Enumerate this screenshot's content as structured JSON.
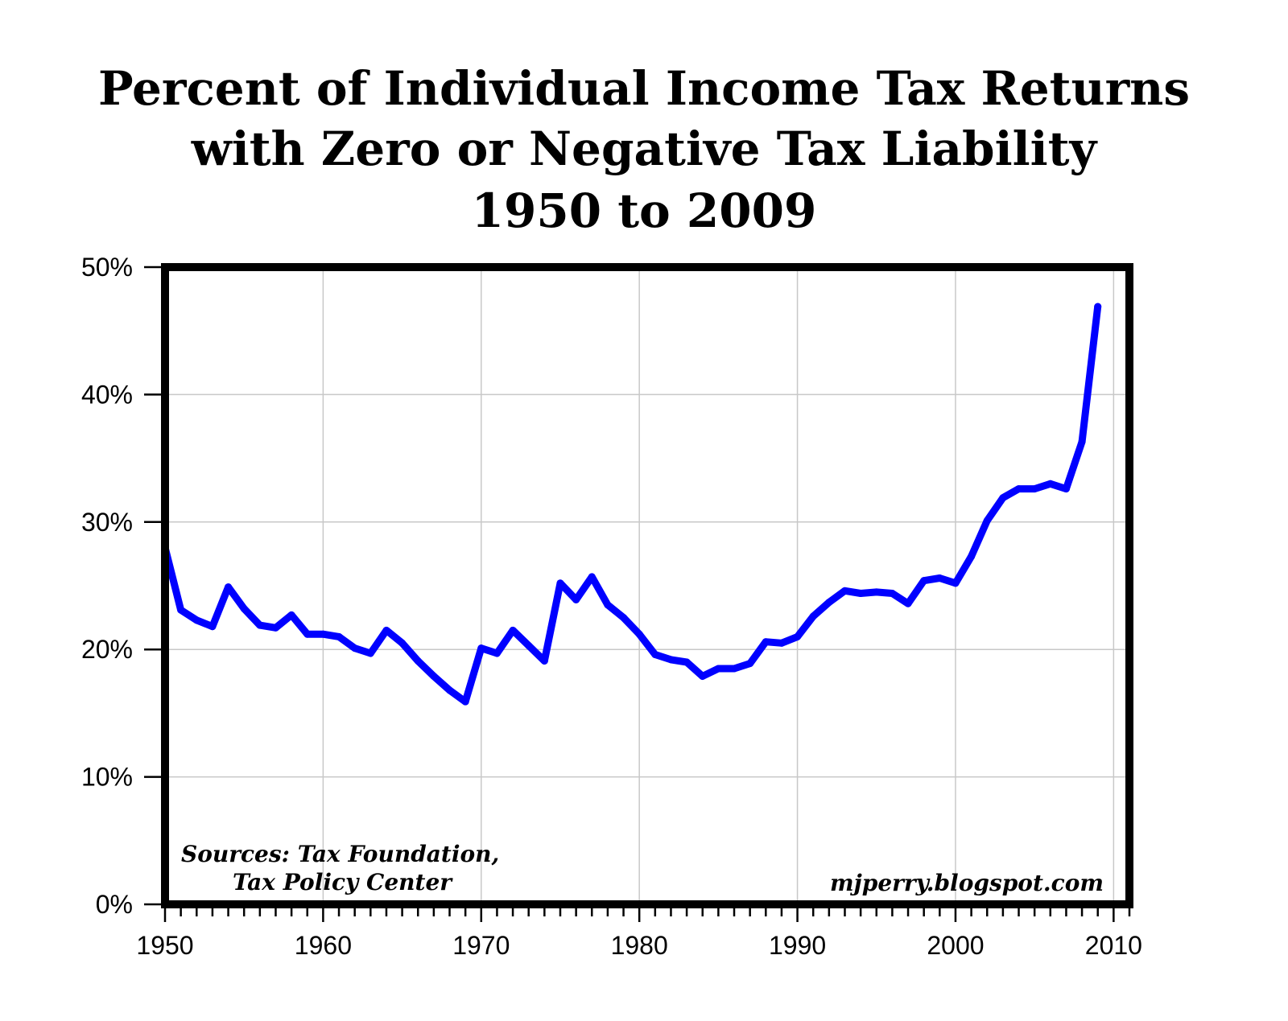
{
  "chart_data": {
    "type": "line",
    "title": "Percent of Individual Income Tax Returns",
    "title_line2": "with Zero or Negative Tax Liability",
    "title_line3": "1950 to 2009",
    "xlabel": "",
    "ylabel": "",
    "xlim": [
      1950,
      2011
    ],
    "ylim": [
      0,
      50
    ],
    "x_ticks": [
      1950,
      1960,
      1970,
      1980,
      1990,
      2000,
      2010
    ],
    "x_tick_labels": [
      "1950",
      "1960",
      "1970",
      "1980",
      "1990",
      "2000",
      "2010"
    ],
    "y_ticks": [
      0,
      10,
      20,
      30,
      40,
      50
    ],
    "y_tick_labels": [
      "0%",
      "10%",
      "20%",
      "30%",
      "40%",
      "50%"
    ],
    "grid": true,
    "legend": "none",
    "series": [
      {
        "color": "#0000ff",
        "x": [
          1950,
          1951,
          1952,
          1953,
          1954,
          1955,
          1956,
          1957,
          1958,
          1959,
          1960,
          1961,
          1962,
          1963,
          1964,
          1965,
          1966,
          1967,
          1968,
          1969,
          1970,
          1971,
          1972,
          1973,
          1974,
          1975,
          1976,
          1977,
          1978,
          1979,
          1980,
          1981,
          1982,
          1983,
          1984,
          1985,
          1986,
          1987,
          1988,
          1989,
          1990,
          1991,
          1992,
          1993,
          1994,
          1995,
          1996,
          1997,
          1998,
          1999,
          2000,
          2001,
          2002,
          2003,
          2004,
          2005,
          2006,
          2007,
          2008,
          2009
        ],
        "values": [
          28.0,
          23.1,
          22.3,
          21.8,
          24.9,
          23.2,
          21.9,
          21.7,
          22.7,
          21.2,
          21.2,
          21.0,
          20.1,
          19.7,
          21.5,
          20.5,
          19.1,
          17.9,
          16.8,
          15.9,
          20.1,
          19.7,
          21.5,
          20.3,
          19.1,
          25.2,
          23.9,
          25.7,
          23.5,
          22.5,
          21.2,
          19.6,
          19.2,
          19.0,
          17.9,
          18.5,
          18.5,
          18.9,
          20.6,
          20.5,
          21.0,
          22.6,
          23.7,
          24.6,
          24.4,
          24.5,
          24.4,
          23.6,
          25.4,
          25.6,
          25.2,
          27.3,
          30.1,
          31.9,
          32.6,
          32.6,
          33.0,
          32.6,
          36.3,
          46.9
        ]
      }
    ],
    "annotations": {
      "source_line1": "Sources: Tax Foundation,",
      "source_line2": "Tax Policy Center",
      "watermark": "mjperry.blogspot.com"
    }
  }
}
